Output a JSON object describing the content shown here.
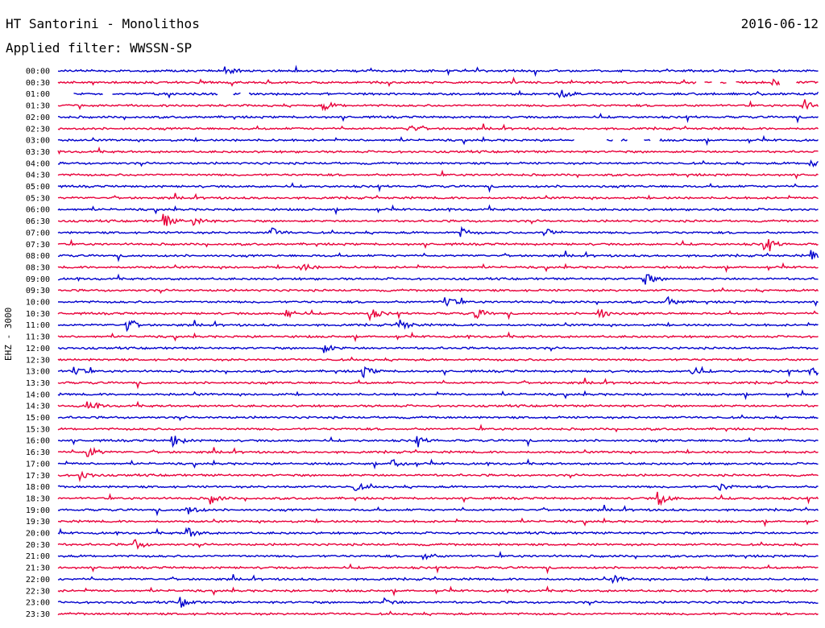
{
  "header": {
    "station": "HT Santorini - Monolithos",
    "date": "2016-06-12",
    "filter": "Applied filter: WWSSN-SP",
    "channel": "EHZ - 3000"
  },
  "colors": {
    "even_trace": "#0000cc",
    "odd_trace": "#e8003a",
    "background": "#ffffff"
  },
  "chart_data": {
    "type": "line",
    "subtype": "helicorder",
    "title": "HT Santorini - Monolithos",
    "date": "2016-06-12",
    "ylabel": "EHZ - 3000",
    "row_labels": [
      "00:00",
      "00:30",
      "01:00",
      "01:30",
      "02:00",
      "02:30",
      "03:00",
      "03:30",
      "04:00",
      "04:30",
      "05:00",
      "05:30",
      "06:00",
      "06:30",
      "07:00",
      "07:30",
      "08:00",
      "08:30",
      "09:00",
      "09:30",
      "10:00",
      "10:30",
      "11:00",
      "11:30",
      "12:00",
      "12:30",
      "13:00",
      "13:30",
      "14:00",
      "14:30",
      "15:00",
      "15:30",
      "16:00",
      "16:30",
      "17:00",
      "17:30",
      "18:00",
      "18:30",
      "19:00",
      "19:30",
      "20:00",
      "20:30",
      "21:00",
      "21:30",
      "22:00",
      "22:30",
      "23:00",
      "23:30"
    ],
    "row_minutes": 30,
    "row_colors": [
      "blue",
      "red"
    ],
    "events": [
      {
        "row": "00:00",
        "t": 0.22,
        "amp": 0.5
      },
      {
        "row": "00:30",
        "t": 0.94,
        "amp": 0.6
      },
      {
        "row": "01:00",
        "t": 0.66,
        "amp": 0.6
      },
      {
        "row": "01:30",
        "t": 0.35,
        "amp": 0.6
      },
      {
        "row": "01:30",
        "t": 0.98,
        "amp": 0.9
      },
      {
        "row": "02:30",
        "t": 0.46,
        "amp": 0.6
      },
      {
        "row": "04:00",
        "t": 0.99,
        "amp": 0.5
      },
      {
        "row": "06:30",
        "t": 0.14,
        "amp": 0.9
      },
      {
        "row": "06:30",
        "t": 0.18,
        "amp": 0.6
      },
      {
        "row": "07:00",
        "t": 0.28,
        "amp": 0.7
      },
      {
        "row": "07:00",
        "t": 0.53,
        "amp": 0.6
      },
      {
        "row": "07:00",
        "t": 0.64,
        "amp": 0.7
      },
      {
        "row": "07:30",
        "t": 0.93,
        "amp": 0.9
      },
      {
        "row": "08:00",
        "t": 0.99,
        "amp": 0.7
      },
      {
        "row": "08:30",
        "t": 0.32,
        "amp": 0.6
      },
      {
        "row": "09:00",
        "t": 0.77,
        "amp": 1.0
      },
      {
        "row": "10:00",
        "t": 0.51,
        "amp": 0.8
      },
      {
        "row": "10:00",
        "t": 0.8,
        "amp": 0.8
      },
      {
        "row": "10:30",
        "t": 0.3,
        "amp": 0.7
      },
      {
        "row": "10:30",
        "t": 0.41,
        "amp": 0.8
      },
      {
        "row": "10:30",
        "t": 0.55,
        "amp": 0.7
      },
      {
        "row": "10:30",
        "t": 0.71,
        "amp": 0.9
      },
      {
        "row": "11:00",
        "t": 0.09,
        "amp": 0.9
      },
      {
        "row": "11:00",
        "t": 0.45,
        "amp": 0.8
      },
      {
        "row": "12:00",
        "t": 0.35,
        "amp": 0.6
      },
      {
        "row": "13:00",
        "t": 0.02,
        "amp": 0.8
      },
      {
        "row": "13:00",
        "t": 0.4,
        "amp": 0.8
      },
      {
        "row": "13:00",
        "t": 0.83,
        "amp": 0.8
      },
      {
        "row": "13:00",
        "t": 0.99,
        "amp": 1.0
      },
      {
        "row": "14:30",
        "t": 0.04,
        "amp": 0.7
      },
      {
        "row": "16:00",
        "t": 0.15,
        "amp": 0.9
      },
      {
        "row": "16:00",
        "t": 0.47,
        "amp": 0.6
      },
      {
        "row": "16:30",
        "t": 0.04,
        "amp": 0.8
      },
      {
        "row": "17:00",
        "t": 0.44,
        "amp": 0.9
      },
      {
        "row": "17:30",
        "t": 0.03,
        "amp": 0.7
      },
      {
        "row": "18:00",
        "t": 0.39,
        "amp": 0.6
      },
      {
        "row": "18:00",
        "t": 0.87,
        "amp": 0.6
      },
      {
        "row": "18:30",
        "t": 0.2,
        "amp": 0.7
      },
      {
        "row": "18:30",
        "t": 0.79,
        "amp": 0.9
      },
      {
        "row": "19:00",
        "t": 0.17,
        "amp": 0.7
      },
      {
        "row": "20:00",
        "t": 0.17,
        "amp": 0.8
      },
      {
        "row": "20:30",
        "t": 0.1,
        "amp": 0.7
      },
      {
        "row": "21:00",
        "t": 0.48,
        "amp": 0.5
      },
      {
        "row": "22:00",
        "t": 0.73,
        "amp": 0.5
      },
      {
        "row": "23:00",
        "t": 0.16,
        "amp": 0.8
      },
      {
        "row": "23:00",
        "t": 0.43,
        "amp": 0.5
      }
    ],
    "gaps": [
      {
        "row": "01:00",
        "t0": 0.0,
        "t1": 0.02
      },
      {
        "row": "01:00",
        "t0": 0.06,
        "t1": 0.07
      },
      {
        "row": "01:00",
        "t0": 0.21,
        "t1": 0.23
      },
      {
        "row": "01:00",
        "t0": 0.24,
        "t1": 0.25
      },
      {
        "row": "00:30",
        "t0": 0.84,
        "t1": 0.85
      },
      {
        "row": "00:30",
        "t0": 0.86,
        "t1": 0.87
      },
      {
        "row": "00:30",
        "t0": 0.88,
        "t1": 0.89
      },
      {
        "row": "00:30",
        "t0": 0.95,
        "t1": 0.97
      },
      {
        "row": "03:00",
        "t0": 0.68,
        "t1": 0.72
      },
      {
        "row": "03:00",
        "t0": 0.73,
        "t1": 0.74
      },
      {
        "row": "03:00",
        "t0": 0.75,
        "t1": 0.77
      },
      {
        "row": "03:00",
        "t0": 0.78,
        "t1": 0.79
      }
    ]
  }
}
